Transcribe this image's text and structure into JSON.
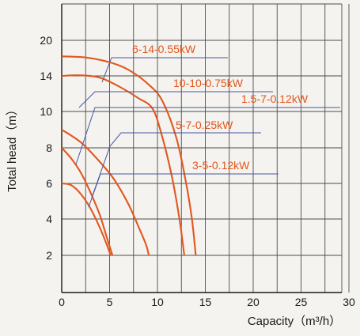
{
  "chart_data": {
    "type": "line",
    "xlabel": "Capacity（m³/h）",
    "ylabel": "Total head（m）",
    "xlim": [
      0,
      30
    ],
    "ylim": [
      0,
      24
    ],
    "x_ticks": [
      "0",
      "5",
      "10",
      "15",
      "20",
      "25",
      "30"
    ],
    "y_ticks": [
      "2",
      "4",
      "6",
      "8",
      "10",
      "14",
      "20"
    ],
    "grid": true,
    "y_scale": "nonuniform: ticks 2,4,6,8,10,14,20 equally spaced",
    "colors": {
      "curve": "#e2571e",
      "leader": "#4a55a2",
      "grid": "#4d4d4d"
    },
    "series": [
      {
        "name": "6-14-0.55kW",
        "points": [
          [
            0,
            17.3
          ],
          [
            2.5,
            17.1
          ],
          [
            5,
            16.3
          ],
          [
            7,
            15.0
          ],
          [
            9,
            13.1
          ],
          [
            10.5,
            11.2
          ],
          [
            12,
            8.5
          ],
          [
            13,
            6.0
          ],
          [
            13.6,
            4.0
          ],
          [
            14,
            2.0
          ]
        ]
      },
      {
        "name": "10-10-0.75kW",
        "points": [
          [
            0,
            14.0
          ],
          [
            2,
            14.1
          ],
          [
            4,
            13.8
          ],
          [
            6,
            12.8
          ],
          [
            8,
            11.5
          ],
          [
            9.5,
            10.3
          ],
          [
            10.5,
            8.6
          ],
          [
            11.5,
            6.4
          ],
          [
            12.3,
            4.0
          ],
          [
            12.8,
            2.0
          ]
        ]
      },
      {
        "name": "1.5-7-0.12kW",
        "points": [
          [
            0,
            6.0
          ],
          [
            1,
            5.9
          ],
          [
            2,
            5.4
          ],
          [
            3,
            4.6
          ],
          [
            4,
            3.5
          ],
          [
            4.7,
            2.6
          ],
          [
            5.1,
            2.0
          ]
        ]
      },
      {
        "name": "5-7-0.25kW",
        "points": [
          [
            0,
            9.0
          ],
          [
            2,
            8.3
          ],
          [
            4,
            7.2
          ],
          [
            5.5,
            6.2
          ],
          [
            7,
            4.8
          ],
          [
            8,
            3.6
          ],
          [
            8.8,
            2.6
          ],
          [
            9.1,
            2.0
          ]
        ]
      },
      {
        "name": "3-5-0.12kW",
        "points": [
          [
            0,
            8.0
          ],
          [
            1,
            7.4
          ],
          [
            2,
            6.6
          ],
          [
            3,
            5.5
          ],
          [
            4,
            4.2
          ],
          [
            4.7,
            3.0
          ],
          [
            5.3,
            2.0
          ]
        ]
      }
    ]
  }
}
